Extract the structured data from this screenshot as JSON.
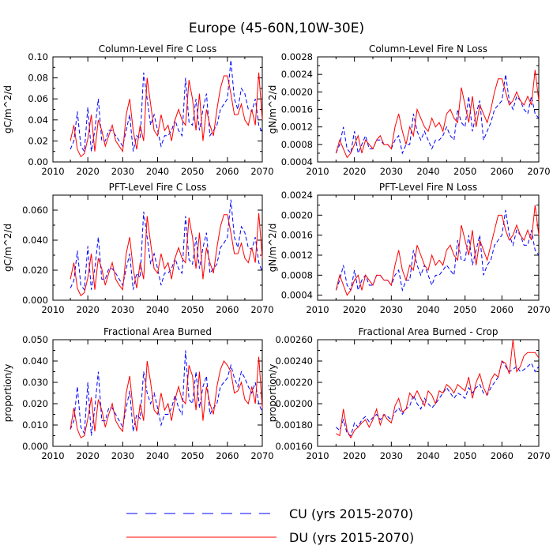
{
  "figure": {
    "title": "Europe (45-60N,10W-30E)",
    "colors": {
      "cu": "#0000ff",
      "du": "#ff0000",
      "axis": "#000000"
    }
  },
  "legend": {
    "entries": [
      {
        "key": "cu",
        "label": "CU (yrs 2015-2070)",
        "style": "dashed"
      },
      {
        "key": "du",
        "label": "DU (yrs 2015-2070)",
        "style": "solid"
      }
    ]
  },
  "chart_data": [
    {
      "type": "line",
      "title": "Column-Level Fire C Loss",
      "ylabel": "gC/m^2/d",
      "xlim": [
        2010,
        2070
      ],
      "ylim": [
        0.0,
        0.1
      ],
      "xticks": [
        2010,
        2020,
        2030,
        2040,
        2050,
        2060,
        2070
      ],
      "xtick_labels": [
        "2010",
        "2020",
        "2030",
        "2040",
        "2050",
        "2060",
        "2070"
      ],
      "yticks": [
        0.0,
        0.02,
        0.04,
        0.06,
        0.08,
        0.1
      ],
      "ytick_labels": [
        "0.00",
        "0.02",
        "0.04",
        "0.06",
        "0.08",
        "0.10"
      ],
      "x_start": 2015,
      "series": [
        {
          "name": "CU (yrs 2015-2070)",
          "key": "cu",
          "values": [
            0.012,
            0.02,
            0.048,
            0.015,
            0.01,
            0.052,
            0.01,
            0.03,
            0.06,
            0.02,
            0.02,
            0.03,
            0.03,
            0.025,
            0.02,
            0.015,
            0.03,
            0.045,
            0.01,
            0.025,
            0.022,
            0.085,
            0.06,
            0.035,
            0.045,
            0.03,
            0.015,
            0.025,
            0.025,
            0.03,
            0.04,
            0.03,
            0.025,
            0.08,
            0.038,
            0.035,
            0.06,
            0.03,
            0.05,
            0.065,
            0.025,
            0.03,
            0.035,
            0.05,
            0.055,
            0.06,
            0.097,
            0.06,
            0.05,
            0.07,
            0.065,
            0.05,
            0.048,
            0.06,
            0.035,
            0.028
          ]
        },
        {
          "name": "DU (yrs 2015-2070)",
          "key": "du",
          "values": [
            0.02,
            0.035,
            0.012,
            0.005,
            0.008,
            0.022,
            0.045,
            0.01,
            0.04,
            0.03,
            0.015,
            0.025,
            0.035,
            0.02,
            0.015,
            0.01,
            0.045,
            0.06,
            0.03,
            0.012,
            0.035,
            0.02,
            0.08,
            0.055,
            0.03,
            0.025,
            0.045,
            0.03,
            0.035,
            0.02,
            0.04,
            0.05,
            0.04,
            0.035,
            0.078,
            0.06,
            0.03,
            0.065,
            0.02,
            0.05,
            0.035,
            0.025,
            0.05,
            0.07,
            0.082,
            0.082,
            0.065,
            0.045,
            0.045,
            0.055,
            0.04,
            0.035,
            0.05,
            0.035,
            0.085,
            0.04
          ]
        }
      ]
    },
    {
      "type": "line",
      "title": "Column-Level Fire N Loss",
      "ylabel": "gN/m^2/d",
      "xlim": [
        2010,
        2070
      ],
      "ylim": [
        0.0004,
        0.0028
      ],
      "xticks": [
        2010,
        2020,
        2030,
        2040,
        2050,
        2060,
        2070
      ],
      "xtick_labels": [
        "2010",
        "2020",
        "2030",
        "2040",
        "2050",
        "2060",
        "2070"
      ],
      "yticks": [
        0.0004,
        0.0008,
        0.0012,
        0.0016,
        0.002,
        0.0024,
        0.0028
      ],
      "ytick_labels": [
        "0.0004",
        "0.0008",
        "0.0012",
        "0.0016",
        "0.0020",
        "0.0024",
        "0.0028"
      ],
      "x_start": 2015,
      "series": [
        {
          "name": "CU (yrs 2015-2070)",
          "key": "cu",
          "values": [
            0.0006,
            0.0008,
            0.0012,
            0.0007,
            0.0006,
            0.0011,
            0.0006,
            0.0008,
            0.001,
            0.0007,
            0.0007,
            0.0009,
            0.0009,
            0.0008,
            0.0008,
            0.0007,
            0.0009,
            0.001,
            0.0006,
            0.0008,
            0.0008,
            0.0015,
            0.0011,
            0.0009,
            0.0011,
            0.0009,
            0.0007,
            0.0009,
            0.0009,
            0.001,
            0.0012,
            0.001,
            0.0009,
            0.0016,
            0.0013,
            0.0012,
            0.0019,
            0.0011,
            0.0015,
            0.0018,
            0.0009,
            0.0011,
            0.0013,
            0.0016,
            0.0017,
            0.0018,
            0.0024,
            0.0018,
            0.0016,
            0.0019,
            0.0018,
            0.0016,
            0.0015,
            0.0019,
            0.0015,
            0.0014
          ]
        },
        {
          "name": "DU (yrs 2015-2070)",
          "key": "du",
          "values": [
            0.0006,
            0.0009,
            0.0007,
            0.0005,
            0.0006,
            0.0008,
            0.001,
            0.0006,
            0.0009,
            0.0008,
            0.0007,
            0.0009,
            0.001,
            0.0008,
            0.0008,
            0.0007,
            0.0012,
            0.0015,
            0.0011,
            0.0008,
            0.0012,
            0.001,
            0.0016,
            0.0014,
            0.0012,
            0.0011,
            0.0014,
            0.0012,
            0.0013,
            0.0011,
            0.0015,
            0.0016,
            0.0014,
            0.0013,
            0.0021,
            0.0017,
            0.0013,
            0.0019,
            0.0012,
            0.0017,
            0.0015,
            0.0013,
            0.0016,
            0.002,
            0.0023,
            0.0023,
            0.002,
            0.0017,
            0.0018,
            0.002,
            0.0018,
            0.0017,
            0.0019,
            0.0017,
            0.0025,
            0.0018
          ]
        }
      ]
    },
    {
      "type": "line",
      "title": "PFT-Level Fire C Loss",
      "ylabel": "gC/m^2/d",
      "xlim": [
        2010,
        2070
      ],
      "ylim": [
        0.0,
        0.07
      ],
      "xticks": [
        2010,
        2020,
        2030,
        2040,
        2050,
        2060,
        2070
      ],
      "xtick_labels": [
        "2010",
        "2020",
        "2030",
        "2040",
        "2050",
        "2060",
        "2070"
      ],
      "yticks": [
        0.0,
        0.02,
        0.04,
        0.06
      ],
      "ytick_labels": [
        "0.000",
        "0.020",
        "0.040",
        "0.060"
      ],
      "x_start": 2015,
      "series": [
        {
          "name": "CU (yrs 2015-2070)",
          "key": "cu",
          "values": [
            0.008,
            0.013,
            0.033,
            0.01,
            0.007,
            0.036,
            0.007,
            0.021,
            0.042,
            0.014,
            0.014,
            0.021,
            0.021,
            0.018,
            0.014,
            0.01,
            0.021,
            0.031,
            0.007,
            0.018,
            0.015,
            0.059,
            0.042,
            0.024,
            0.031,
            0.021,
            0.01,
            0.018,
            0.018,
            0.021,
            0.028,
            0.021,
            0.018,
            0.056,
            0.027,
            0.024,
            0.042,
            0.021,
            0.035,
            0.045,
            0.018,
            0.021,
            0.024,
            0.035,
            0.038,
            0.042,
            0.067,
            0.042,
            0.035,
            0.049,
            0.045,
            0.035,
            0.034,
            0.042,
            0.025,
            0.019
          ]
        },
        {
          "name": "DU (yrs 2015-2070)",
          "key": "du",
          "values": [
            0.014,
            0.025,
            0.008,
            0.003,
            0.005,
            0.015,
            0.031,
            0.007,
            0.028,
            0.021,
            0.01,
            0.018,
            0.025,
            0.014,
            0.01,
            0.007,
            0.031,
            0.042,
            0.021,
            0.008,
            0.025,
            0.014,
            0.056,
            0.038,
            0.021,
            0.018,
            0.031,
            0.021,
            0.025,
            0.014,
            0.028,
            0.035,
            0.028,
            0.025,
            0.055,
            0.042,
            0.021,
            0.045,
            0.014,
            0.035,
            0.025,
            0.018,
            0.035,
            0.049,
            0.057,
            0.057,
            0.045,
            0.031,
            0.031,
            0.038,
            0.028,
            0.025,
            0.035,
            0.025,
            0.058,
            0.028
          ]
        }
      ]
    },
    {
      "type": "line",
      "title": "PFT-Level Fire N Loss",
      "ylabel": "gN/m^2/d",
      "xlim": [
        2010,
        2070
      ],
      "ylim": [
        0.0003,
        0.0024
      ],
      "xticks": [
        2010,
        2020,
        2030,
        2040,
        2050,
        2060,
        2070
      ],
      "xtick_labels": [
        "2010",
        "2020",
        "2030",
        "2040",
        "2050",
        "2060",
        "2070"
      ],
      "yticks": [
        0.0004,
        0.0008,
        0.0012,
        0.0016,
        0.002,
        0.0024
      ],
      "ytick_labels": [
        "0.0004",
        "0.0008",
        "0.0012",
        "0.0016",
        "0.0020",
        "0.0024"
      ],
      "x_start": 2015,
      "series": [
        {
          "name": "CU (yrs 2015-2070)",
          "key": "cu",
          "values": [
            0.0005,
            0.0007,
            0.001,
            0.0006,
            0.0005,
            0.0009,
            0.0005,
            0.0007,
            0.0008,
            0.0006,
            0.0006,
            0.0008,
            0.0008,
            0.0007,
            0.0007,
            0.0006,
            0.0008,
            0.0009,
            0.0005,
            0.0007,
            0.0007,
            0.0013,
            0.001,
            0.0008,
            0.001,
            0.0008,
            0.0006,
            0.0008,
            0.0008,
            0.0009,
            0.001,
            0.0009,
            0.0008,
            0.0015,
            0.0011,
            0.0011,
            0.0016,
            0.001,
            0.0013,
            0.0016,
            0.0008,
            0.001,
            0.0011,
            0.0014,
            0.0015,
            0.0016,
            0.0021,
            0.0016,
            0.0014,
            0.0017,
            0.0016,
            0.0014,
            0.0014,
            0.0017,
            0.0013,
            0.0012
          ]
        },
        {
          "name": "DU (yrs 2015-2070)",
          "key": "du",
          "values": [
            0.0005,
            0.0008,
            0.0006,
            0.0004,
            0.0005,
            0.0007,
            0.0008,
            0.0005,
            0.0008,
            0.0007,
            0.0006,
            0.0008,
            0.0008,
            0.0007,
            0.0007,
            0.0006,
            0.001,
            0.0013,
            0.0009,
            0.0007,
            0.001,
            0.0009,
            0.0014,
            0.0012,
            0.001,
            0.0009,
            0.0012,
            0.001,
            0.0011,
            0.001,
            0.0013,
            0.0014,
            0.0012,
            0.0011,
            0.0018,
            0.0015,
            0.0012,
            0.0017,
            0.001,
            0.0015,
            0.0013,
            0.0011,
            0.0014,
            0.0017,
            0.002,
            0.002,
            0.0017,
            0.0015,
            0.0016,
            0.0018,
            0.0016,
            0.0015,
            0.0017,
            0.0015,
            0.0022,
            0.0016
          ]
        }
      ]
    },
    {
      "type": "line",
      "title": "Fractional Area Burned",
      "ylabel": "proportion/y",
      "xlim": [
        2010,
        2070
      ],
      "ylim": [
        0.0,
        0.05
      ],
      "xticks": [
        2010,
        2020,
        2030,
        2040,
        2050,
        2060,
        2070
      ],
      "xtick_labels": [
        "2010",
        "2020",
        "2030",
        "2040",
        "2050",
        "2060",
        "2070"
      ],
      "yticks": [
        0.0,
        0.01,
        0.02,
        0.03,
        0.04,
        0.05
      ],
      "ytick_labels": [
        "0.000",
        "0.010",
        "0.020",
        "0.030",
        "0.040",
        "0.050"
      ],
      "x_start": 2015,
      "series": [
        {
          "name": "CU (yrs 2015-2070)",
          "key": "cu",
          "values": [
            0.008,
            0.012,
            0.028,
            0.009,
            0.006,
            0.03,
            0.005,
            0.018,
            0.035,
            0.012,
            0.012,
            0.018,
            0.018,
            0.015,
            0.012,
            0.009,
            0.018,
            0.026,
            0.007,
            0.015,
            0.013,
            0.035,
            0.025,
            0.02,
            0.025,
            0.018,
            0.01,
            0.015,
            0.015,
            0.018,
            0.024,
            0.018,
            0.015,
            0.045,
            0.022,
            0.02,
            0.035,
            0.018,
            0.028,
            0.033,
            0.015,
            0.018,
            0.02,
            0.028,
            0.03,
            0.032,
            0.038,
            0.032,
            0.028,
            0.035,
            0.032,
            0.028,
            0.025,
            0.03,
            0.02,
            0.016
          ]
        },
        {
          "name": "DU (yrs 2015-2070)",
          "key": "du",
          "values": [
            0.008,
            0.018,
            0.008,
            0.004,
            0.005,
            0.013,
            0.023,
            0.007,
            0.022,
            0.017,
            0.009,
            0.015,
            0.02,
            0.012,
            0.009,
            0.007,
            0.025,
            0.033,
            0.017,
            0.007,
            0.02,
            0.012,
            0.04,
            0.03,
            0.017,
            0.015,
            0.025,
            0.017,
            0.02,
            0.012,
            0.022,
            0.028,
            0.022,
            0.02,
            0.038,
            0.033,
            0.017,
            0.035,
            0.012,
            0.028,
            0.02,
            0.015,
            0.028,
            0.036,
            0.04,
            0.038,
            0.035,
            0.025,
            0.026,
            0.03,
            0.022,
            0.02,
            0.028,
            0.02,
            0.042,
            0.018
          ]
        }
      ]
    },
    {
      "type": "line",
      "title": "Fractional Area Burned - Crop",
      "ylabel": "proportion/y",
      "xlim": [
        2010,
        2070
      ],
      "ylim": [
        0.0016,
        0.0026
      ],
      "xticks": [
        2010,
        2020,
        2030,
        2040,
        2050,
        2060,
        2070
      ],
      "xtick_labels": [
        "2010",
        "2020",
        "2030",
        "2040",
        "2050",
        "2060",
        "2070"
      ],
      "yticks": [
        0.0016,
        0.0018,
        0.002,
        0.0022,
        0.0024,
        0.0026
      ],
      "ytick_labels": [
        "0.00160",
        "0.00180",
        "0.00200",
        "0.00220",
        "0.00240",
        "0.00260"
      ],
      "x_start": 2015,
      "series": [
        {
          "name": "CU (yrs 2015-2070)",
          "key": "cu",
          "values": [
            0.00178,
            0.00175,
            0.00185,
            0.00172,
            0.0017,
            0.00182,
            0.00178,
            0.00185,
            0.00188,
            0.00183,
            0.00187,
            0.0019,
            0.00185,
            0.0019,
            0.00188,
            0.00185,
            0.00192,
            0.00196,
            0.0019,
            0.00195,
            0.00198,
            0.00208,
            0.002,
            0.00195,
            0.00205,
            0.002,
            0.00196,
            0.002,
            0.00205,
            0.0021,
            0.00215,
            0.0021,
            0.00205,
            0.0021,
            0.00208,
            0.00205,
            0.00215,
            0.0021,
            0.00215,
            0.00218,
            0.0021,
            0.00208,
            0.00215,
            0.0022,
            0.00225,
            0.0024,
            0.00235,
            0.0023,
            0.00232,
            0.00235,
            0.0023,
            0.00232,
            0.00235,
            0.00238,
            0.0023,
            0.00235
          ]
        },
        {
          "name": "DU (yrs 2015-2070)",
          "key": "du",
          "values": [
            0.00172,
            0.0017,
            0.00195,
            0.00175,
            0.00168,
            0.00175,
            0.00178,
            0.00182,
            0.00185,
            0.00178,
            0.00185,
            0.00195,
            0.0018,
            0.0019,
            0.00185,
            0.00182,
            0.00198,
            0.00205,
            0.00192,
            0.00195,
            0.0021,
            0.00205,
            0.00212,
            0.00205,
            0.00198,
            0.00212,
            0.00208,
            0.002,
            0.00212,
            0.0021,
            0.00218,
            0.00215,
            0.0021,
            0.00218,
            0.00215,
            0.00212,
            0.00225,
            0.00205,
            0.0022,
            0.00228,
            0.00215,
            0.00208,
            0.00222,
            0.00228,
            0.00225,
            0.0024,
            0.00238,
            0.00228,
            0.0026,
            0.0023,
            0.00235,
            0.00245,
            0.00248,
            0.00248,
            0.00248,
            0.00243
          ]
        }
      ]
    }
  ]
}
